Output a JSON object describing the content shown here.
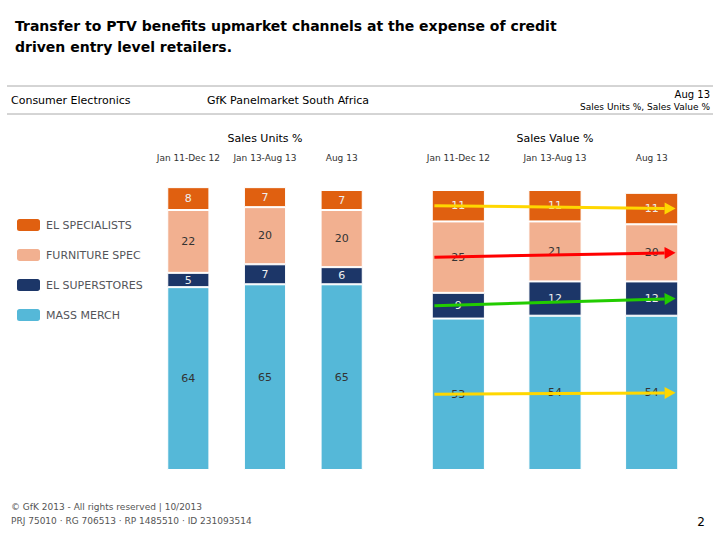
{
  "title": "Transfer to PTV benefits upmarket channels at the expense of credit\ndriven entry level retailers.",
  "subtitle": [
    "Consumer Electronics",
    "GfK Panelmarket South Africa",
    "Aug 13",
    "Sales Units %, Sales Value %"
  ],
  "annotations": [
    "© GfK 2013 - All rights reserved | 10/2013\nPRJ 75010 · RG 706513 · RP 1485510 · ID 231093514",
    "2"
  ],
  "chart_data": [
    {
      "type": "bar",
      "stacked": true,
      "title": "Sales Units %",
      "categories": [
        "Jan 11-Dec 12",
        "Jan 13-Aug 13",
        "Aug 13"
      ],
      "series": [
        {
          "name": "EL SPECIALISTS",
          "color": "#E06010",
          "values": [
            8,
            7,
            7
          ]
        },
        {
          "name": "FURNITURE SPEC",
          "color": "#F2B090",
          "values": [
            22,
            20,
            20
          ]
        },
        {
          "name": "EL SUPERSTORES",
          "color": "#1C3668",
          "values": [
            5,
            7,
            6
          ]
        },
        {
          "name": "MASS MERCH",
          "color": "#55B8D8",
          "values": [
            64,
            65,
            65
          ]
        }
      ],
      "ylim": [
        0,
        105
      ],
      "data_labels": true,
      "tick_labels": "x",
      "grid": false,
      "legend": "left"
    },
    {
      "type": "bar",
      "stacked": true,
      "title": "Sales Value %",
      "categories": [
        "Jan 11-Dec 12",
        "Jan 13-Aug 13",
        "Aug 13"
      ],
      "series": [
        {
          "name": "EL SPECIALISTS",
          "color": "#E06010",
          "values": [
            11,
            11,
            11
          ]
        },
        {
          "name": "FURNITURE SPEC",
          "color": "#F2B090",
          "values": [
            25,
            21,
            20
          ]
        },
        {
          "name": "EL SUPERSTORES",
          "color": "#1C3668",
          "values": [
            9,
            12,
            12
          ]
        },
        {
          "name": "MASS MERCH",
          "color": "#55B8D8",
          "values": [
            53,
            54,
            54
          ]
        }
      ],
      "ylim": [
        0,
        105
      ],
      "data_labels": true,
      "tick_labels": "x",
      "grid": false,
      "legend": "left",
      "annotations": [
        {
          "type": "arrow",
          "series": "EL SPECIALISTS",
          "from": "Jan 11-Dec 12",
          "to": "Aug 13",
          "color": "#FFD700"
        },
        {
          "type": "arrow",
          "series": "FURNITURE SPEC",
          "from": "Jan 11-Dec 12",
          "to": "Aug 13",
          "color": "red"
        },
        {
          "type": "arrow",
          "series": "EL SUPERSTORES",
          "from": "Jan 11-Dec 12",
          "to": "Aug 13",
          "color": "#22CC00"
        },
        {
          "type": "arrow",
          "series": "MASS MERCH",
          "from": "Jan 11-Dec 12",
          "to": "Aug 13",
          "color": "#FFD700"
        }
      ]
    }
  ]
}
